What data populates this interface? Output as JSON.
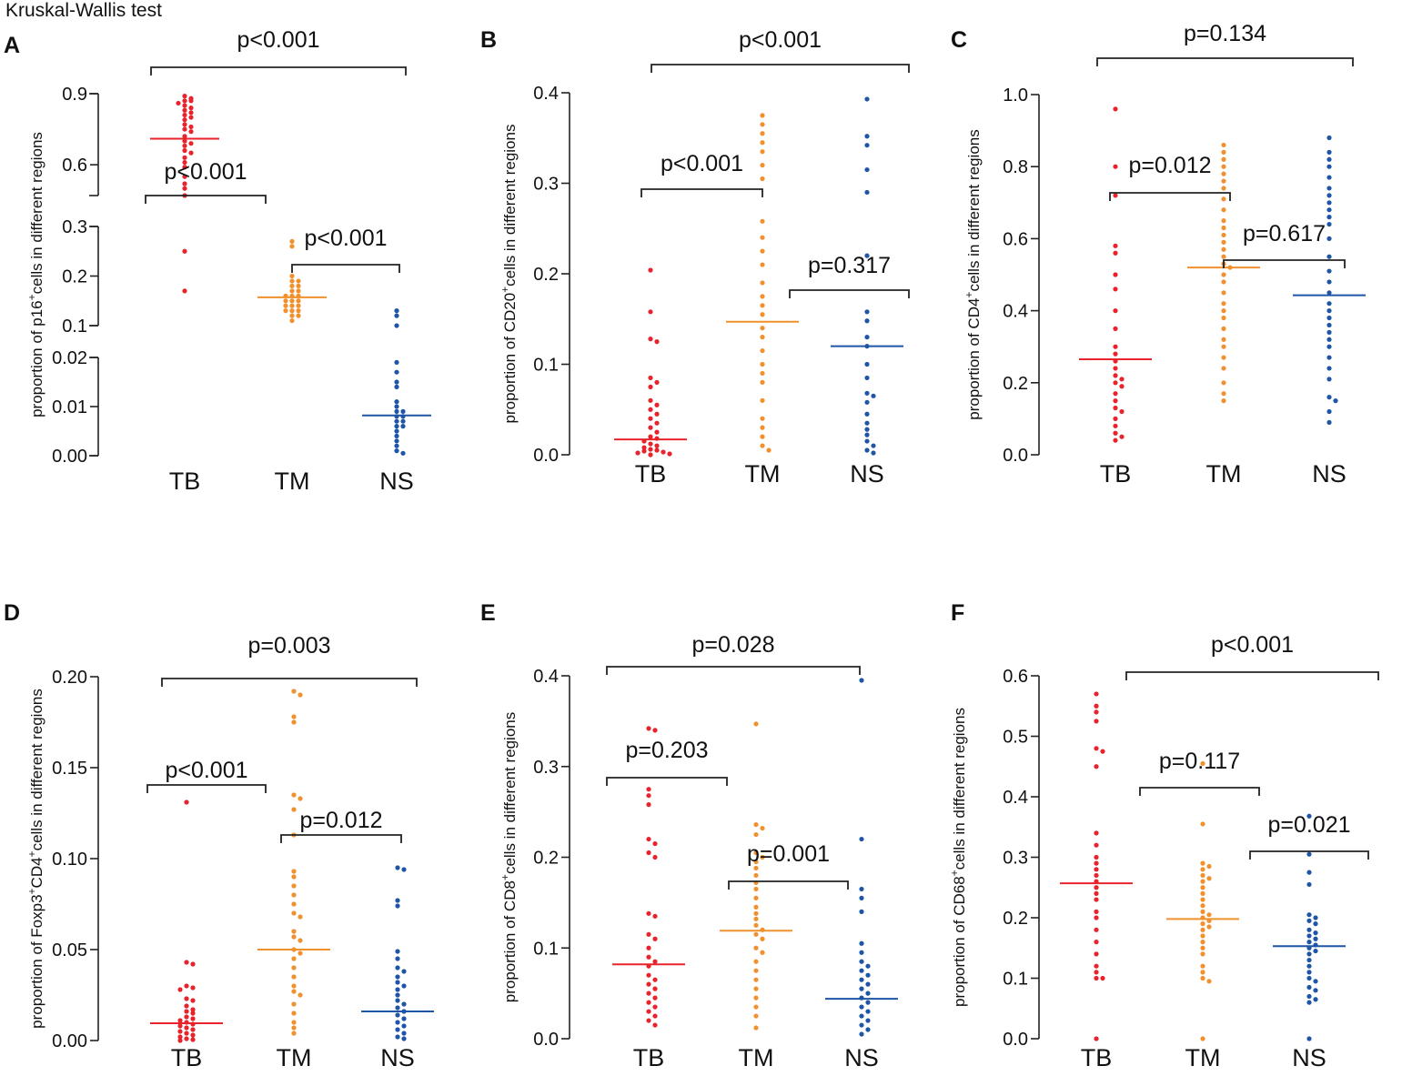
{
  "header": {
    "test_name": "Kruskal-Wallis test"
  },
  "colors": {
    "TB": "#e8232b",
    "TM": "#f0912d",
    "NS": "#1f55a6",
    "axis": "#222222"
  },
  "chart_data": [
    {
      "panel": "A",
      "type": "scatter",
      "broken_axis": true,
      "ylabel_pre": "proportion of p16",
      "ylabel_sup": "+",
      "ylabel_post": "cells in different regions",
      "categories": [
        "TB",
        "TM",
        "NS"
      ],
      "ylim": [
        0,
        0.9
      ],
      "yticks": [
        "0.00",
        "0.01",
        "0.02",
        "0.1",
        "0.2",
        "0.3",
        "0.6",
        "0.9"
      ],
      "medians": [
        0.71,
        0.157,
        0.0082
      ],
      "series": [
        {
          "name": "TB",
          "values": [
            0.89,
            0.88,
            0.87,
            0.87,
            0.86,
            0.85,
            0.84,
            0.83,
            0.82,
            0.81,
            0.8,
            0.79,
            0.77,
            0.76,
            0.75,
            0.74,
            0.72,
            0.7,
            0.69,
            0.68,
            0.66,
            0.65,
            0.63,
            0.61,
            0.59,
            0.55,
            0.52,
            0.5,
            0.47,
            0.25,
            0.17
          ]
        },
        {
          "name": "TM",
          "values": [
            0.27,
            0.26,
            0.2,
            0.19,
            0.19,
            0.18,
            0.18,
            0.17,
            0.17,
            0.16,
            0.16,
            0.16,
            0.15,
            0.15,
            0.15,
            0.14,
            0.14,
            0.14,
            0.13,
            0.13,
            0.13,
            0.12,
            0.12,
            0.11
          ]
        },
        {
          "name": "NS",
          "values": [
            0.13,
            0.12,
            0.1,
            0.019,
            0.017,
            0.015,
            0.014,
            0.011,
            0.01,
            0.009,
            0.009,
            0.008,
            0.008,
            0.007,
            0.007,
            0.006,
            0.006,
            0.005,
            0.004,
            0.003,
            0.002,
            0.001,
            0.0005
          ]
        }
      ],
      "comparisons": [
        {
          "label": "p<0.001",
          "from": "TB",
          "to": "NS",
          "level": 0.89
        },
        {
          "label": "p<0.001",
          "from": "TB",
          "to": "TM",
          "level": 0.46
        },
        {
          "label": "p<0.001",
          "from": "TM",
          "to": "NS",
          "level": 0.215
        }
      ]
    },
    {
      "panel": "B",
      "type": "scatter",
      "ylabel_pre": "proportion of CD20",
      "ylabel_sup": "+",
      "ylabel_post": "cells in different regions",
      "categories": [
        "TB",
        "TM",
        "NS"
      ],
      "ylim": [
        0,
        0.4
      ],
      "yticks": [
        "0.0",
        "0.1",
        "0.2",
        "0.3",
        "0.4"
      ],
      "medians": [
        0.017,
        0.147,
        0.12
      ],
      "series": [
        {
          "name": "TB",
          "values": [
            0.204,
            0.158,
            0.128,
            0.125,
            0.085,
            0.08,
            0.075,
            0.06,
            0.055,
            0.05,
            0.045,
            0.04,
            0.035,
            0.03,
            0.025,
            0.02,
            0.018,
            0.015,
            0.012,
            0.01,
            0.008,
            0.006,
            0.005,
            0.004,
            0.003,
            0.002,
            0.001,
            0.0
          ]
        },
        {
          "name": "TM",
          "values": [
            0.375,
            0.365,
            0.355,
            0.345,
            0.335,
            0.32,
            0.305,
            0.258,
            0.24,
            0.225,
            0.21,
            0.19,
            0.175,
            0.165,
            0.155,
            0.14,
            0.13,
            0.115,
            0.1,
            0.09,
            0.08,
            0.06,
            0.04,
            0.03,
            0.02,
            0.01,
            0.005
          ]
        },
        {
          "name": "NS",
          "values": [
            0.393,
            0.352,
            0.342,
            0.315,
            0.29,
            0.22,
            0.158,
            0.148,
            0.13,
            0.12,
            0.1,
            0.085,
            0.068,
            0.065,
            0.058,
            0.045,
            0.035,
            0.028,
            0.022,
            0.015,
            0.01,
            0.005,
            0.002
          ]
        }
      ],
      "comparisons": [
        {
          "label": "p<0.001",
          "from": "TB",
          "to": "NS",
          "level": 0.43
        },
        {
          "label": "p<0.001",
          "from": "TB",
          "to": "TM",
          "level": 0.292
        },
        {
          "label": "p=0.317",
          "from": "TM",
          "to": "NS",
          "level": 0.182
        }
      ]
    },
    {
      "panel": "C",
      "type": "scatter",
      "ylabel_pre": "proportion of CD4",
      "ylabel_sup": "+",
      "ylabel_post": "cells in different regions",
      "categories": [
        "TB",
        "TM",
        "NS"
      ],
      "ylim": [
        0,
        1.0
      ],
      "yticks": [
        "0.0",
        "0.2",
        "0.4",
        "0.6",
        "0.8",
        "1.0"
      ],
      "medians": [
        0.265,
        0.52,
        0.443
      ],
      "series": [
        {
          "name": "TB",
          "values": [
            0.96,
            0.8,
            0.72,
            0.58,
            0.56,
            0.5,
            0.46,
            0.4,
            0.35,
            0.3,
            0.28,
            0.26,
            0.24,
            0.22,
            0.21,
            0.2,
            0.19,
            0.17,
            0.15,
            0.13,
            0.12,
            0.1,
            0.08,
            0.06,
            0.05,
            0.04
          ]
        },
        {
          "name": "TM",
          "values": [
            0.86,
            0.84,
            0.82,
            0.8,
            0.78,
            0.76,
            0.74,
            0.71,
            0.68,
            0.65,
            0.63,
            0.61,
            0.59,
            0.57,
            0.55,
            0.53,
            0.52,
            0.5,
            0.48,
            0.45,
            0.42,
            0.4,
            0.38,
            0.35,
            0.32,
            0.3,
            0.27,
            0.24,
            0.2,
            0.17,
            0.15
          ]
        },
        {
          "name": "NS",
          "values": [
            0.88,
            0.84,
            0.82,
            0.8,
            0.77,
            0.74,
            0.72,
            0.7,
            0.68,
            0.66,
            0.64,
            0.6,
            0.55,
            0.51,
            0.48,
            0.45,
            0.42,
            0.4,
            0.38,
            0.36,
            0.34,
            0.32,
            0.3,
            0.27,
            0.24,
            0.21,
            0.16,
            0.15,
            0.12,
            0.09
          ]
        }
      ],
      "comparisons": [
        {
          "label": "p=0.134",
          "from": "TB",
          "to": "NS",
          "level": 1.09
        },
        {
          "label": "p=0.012",
          "from": "TB",
          "to": "TM",
          "level": 0.727
        },
        {
          "label": "p=0.617",
          "from": "TM",
          "to": "NS",
          "level": 0.54
        }
      ]
    },
    {
      "panel": "D",
      "type": "scatter",
      "ylabel_pre": "proportion of Foxp3",
      "ylabel_sup": "+",
      "ylabel_mid": "CD4",
      "ylabel_sup2": "+",
      "ylabel_post": "cells in different regions",
      "categories": [
        "TB",
        "TM",
        "NS"
      ],
      "ylim": [
        0,
        0.2
      ],
      "yticks": [
        "0.00",
        "0.05",
        "0.10",
        "0.15",
        "0.20"
      ],
      "medians": [
        0.0095,
        0.05,
        0.016
      ],
      "series": [
        {
          "name": "TB",
          "values": [
            0.131,
            0.043,
            0.042,
            0.03,
            0.029,
            0.028,
            0.023,
            0.022,
            0.019,
            0.017,
            0.016,
            0.015,
            0.013,
            0.012,
            0.011,
            0.01,
            0.009,
            0.008,
            0.007,
            0.006,
            0.005,
            0.004,
            0.003,
            0.002,
            0.001,
            0.0005,
            0.0
          ]
        },
        {
          "name": "TM",
          "values": [
            0.192,
            0.19,
            0.178,
            0.175,
            0.135,
            0.133,
            0.127,
            0.113,
            0.093,
            0.09,
            0.085,
            0.08,
            0.075,
            0.07,
            0.068,
            0.06,
            0.057,
            0.055,
            0.05,
            0.048,
            0.045,
            0.04,
            0.035,
            0.03,
            0.027,
            0.025,
            0.02,
            0.015,
            0.01,
            0.007,
            0.004
          ]
        },
        {
          "name": "NS",
          "values": [
            0.095,
            0.094,
            0.077,
            0.074,
            0.049,
            0.045,
            0.04,
            0.038,
            0.035,
            0.032,
            0.03,
            0.028,
            0.025,
            0.022,
            0.02,
            0.018,
            0.016,
            0.014,
            0.012,
            0.01,
            0.008,
            0.006,
            0.004,
            0.002,
            0.001
          ]
        }
      ],
      "comparisons": [
        {
          "label": "p=0.003",
          "from": "TB",
          "to": "NS",
          "level": 0.198
        },
        {
          "label": "p<0.001",
          "from": "TB",
          "to": "TM",
          "level": 0.14
        },
        {
          "label": "p=0.012",
          "from": "TM",
          "to": "NS",
          "level": 0.112
        }
      ]
    },
    {
      "panel": "E",
      "type": "scatter",
      "ylabel_pre": "proportion of CD8",
      "ylabel_sup": "+",
      "ylabel_post": "cells in different regions",
      "categories": [
        "TB",
        "TM",
        "NS"
      ],
      "ylim": [
        0,
        0.4
      ],
      "yticks": [
        "0.0",
        "0.1",
        "0.2",
        "0.3",
        "0.4"
      ],
      "medians": [
        0.082,
        0.119,
        0.044
      ],
      "series": [
        {
          "name": "TB",
          "values": [
            0.342,
            0.34,
            0.275,
            0.268,
            0.258,
            0.22,
            0.215,
            0.205,
            0.2,
            0.138,
            0.135,
            0.115,
            0.11,
            0.1,
            0.09,
            0.085,
            0.08,
            0.07,
            0.065,
            0.06,
            0.055,
            0.05,
            0.045,
            0.04,
            0.035,
            0.03,
            0.025,
            0.02,
            0.015
          ]
        },
        {
          "name": "TM",
          "values": [
            0.347,
            0.236,
            0.232,
            0.225,
            0.205,
            0.2,
            0.195,
            0.188,
            0.18,
            0.172,
            0.165,
            0.155,
            0.145,
            0.138,
            0.132,
            0.125,
            0.12,
            0.115,
            0.11,
            0.1,
            0.095,
            0.085,
            0.075,
            0.065,
            0.055,
            0.045,
            0.035,
            0.025,
            0.012
          ]
        },
        {
          "name": "NS",
          "values": [
            0.395,
            0.22,
            0.165,
            0.155,
            0.14,
            0.105,
            0.095,
            0.085,
            0.08,
            0.075,
            0.07,
            0.065,
            0.06,
            0.055,
            0.05,
            0.045,
            0.04,
            0.035,
            0.03,
            0.025,
            0.02,
            0.015,
            0.01,
            0.005
          ]
        }
      ],
      "comparisons": [
        {
          "label": "p=0.028",
          "from": "TB",
          "to": "NS",
          "level": 0.408
        },
        {
          "label": "p=0.203",
          "from": "TB",
          "to": "TM",
          "level": 0.288
        },
        {
          "label": "p=0.001",
          "from": "TM",
          "to": "NS",
          "level": 0.173
        }
      ]
    },
    {
      "panel": "F",
      "type": "scatter",
      "ylabel_pre": "proportion of CD68",
      "ylabel_sup": "+",
      "ylabel_post": "cells in different regions",
      "categories": [
        "TB",
        "TM",
        "NS"
      ],
      "ylim": [
        0,
        0.6
      ],
      "yticks": [
        "0.0",
        "0.1",
        "0.2",
        "0.3",
        "0.4",
        "0.5",
        "0.6"
      ],
      "medians": [
        0.257,
        0.198,
        0.153
      ],
      "series": [
        {
          "name": "TB",
          "values": [
            0.57,
            0.55,
            0.54,
            0.525,
            0.48,
            0.475,
            0.45,
            0.34,
            0.32,
            0.3,
            0.29,
            0.28,
            0.27,
            0.26,
            0.25,
            0.24,
            0.23,
            0.21,
            0.2,
            0.18,
            0.16,
            0.14,
            0.12,
            0.11,
            0.1,
            0.1,
            0.0
          ]
        },
        {
          "name": "TM",
          "values": [
            0.455,
            0.355,
            0.29,
            0.285,
            0.28,
            0.27,
            0.265,
            0.26,
            0.25,
            0.24,
            0.23,
            0.22,
            0.21,
            0.205,
            0.2,
            0.195,
            0.19,
            0.185,
            0.18,
            0.17,
            0.16,
            0.15,
            0.14,
            0.12,
            0.11,
            0.1,
            0.095,
            0.0
          ]
        },
        {
          "name": "NS",
          "values": [
            0.368,
            0.305,
            0.275,
            0.255,
            0.205,
            0.2,
            0.195,
            0.19,
            0.18,
            0.175,
            0.17,
            0.165,
            0.16,
            0.155,
            0.15,
            0.145,
            0.14,
            0.13,
            0.12,
            0.11,
            0.1,
            0.095,
            0.085,
            0.08,
            0.07,
            0.065,
            0.06,
            0.0
          ]
        }
      ],
      "comparisons": [
        {
          "label": "p<0.001",
          "from": "TB",
          "to": "NS",
          "level": 0.6
        },
        {
          "label": "p=0.117",
          "from": "TB",
          "to": "TM",
          "level": 0.41
        },
        {
          "label": "p=0.021",
          "from": "TM",
          "to": "NS",
          "level": 0.305
        }
      ]
    }
  ]
}
